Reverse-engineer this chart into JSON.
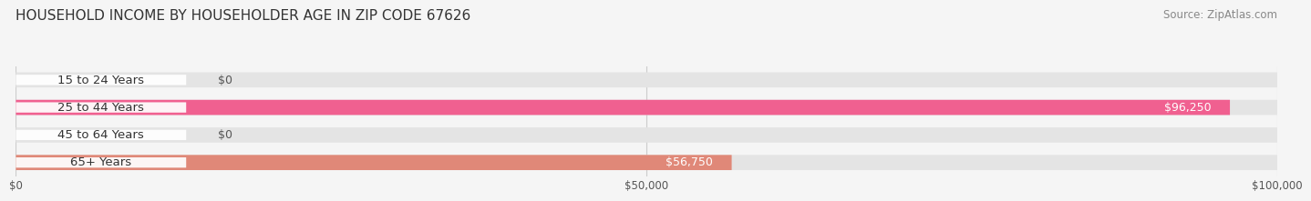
{
  "title": "HOUSEHOLD INCOME BY HOUSEHOLDER AGE IN ZIP CODE 67626",
  "source": "Source: ZipAtlas.com",
  "categories": [
    "15 to 24 Years",
    "25 to 44 Years",
    "45 to 64 Years",
    "65+ Years"
  ],
  "values": [
    0,
    96250,
    0,
    56750
  ],
  "bar_colors": [
    "#9999cc",
    "#f06090",
    "#f0c080",
    "#e08878"
  ],
  "value_labels": [
    "$0",
    "$96,250",
    "$0",
    "$56,750"
  ],
  "xmax": 100000,
  "xticks": [
    0,
    50000,
    100000
  ],
  "xtick_labels": [
    "$0",
    "$50,000",
    "$100,000"
  ],
  "bg_color": "#f5f5f5",
  "bar_bg_color": "#e4e4e4",
  "title_fontsize": 11,
  "source_fontsize": 8.5,
  "label_fontsize": 9.5,
  "value_fontsize": 9,
  "bar_height": 0.55,
  "figsize": [
    14.06,
    2.33
  ]
}
